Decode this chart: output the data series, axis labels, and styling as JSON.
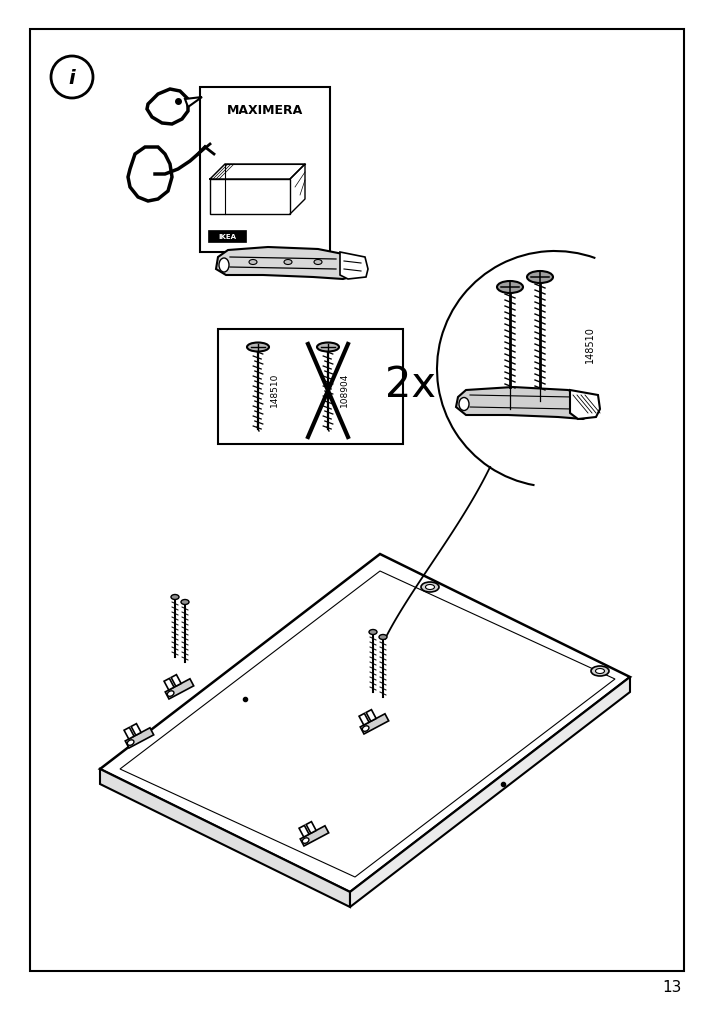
{
  "page_number": "13",
  "bg": "#ffffff",
  "fg": "#000000",
  "label_148510": "148510",
  "label_108904": "108904",
  "quantity_text": "2x",
  "maximera_text": "MAXIMERA"
}
